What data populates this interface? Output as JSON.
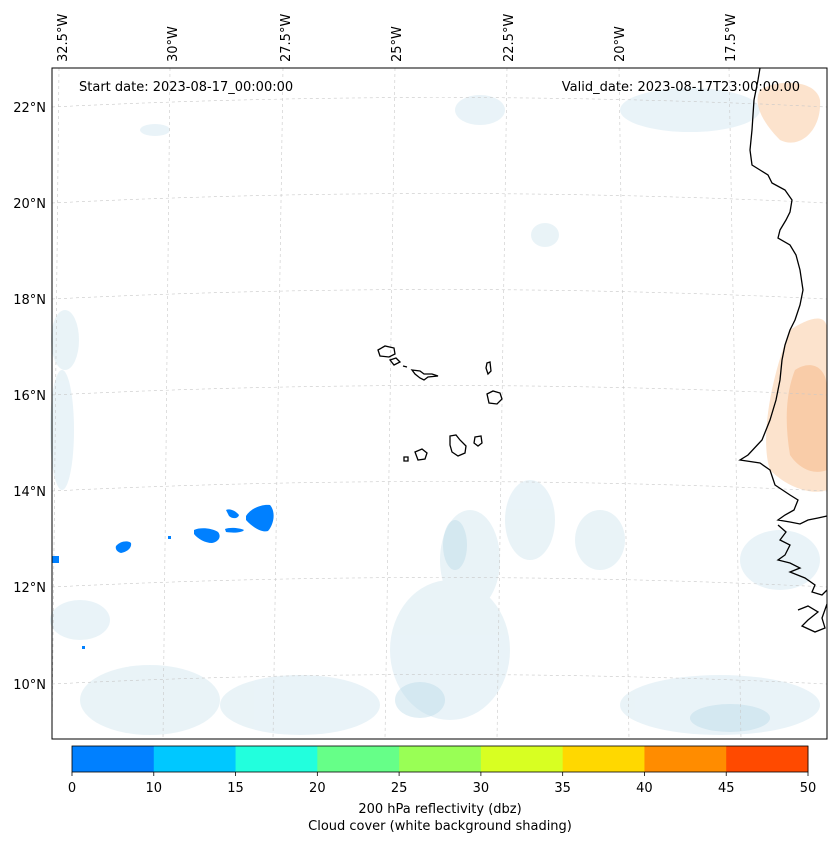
{
  "map": {
    "annotations": {
      "start": "Start date: 2023-08-17_00:00:00",
      "valid": "Valid_date: 2023-08-17T23:00:00.00"
    },
    "lon_labels": [
      "32.5°W",
      "30°W",
      "27.5°W",
      "25°W",
      "22.5°W",
      "20°W",
      "17.5°W"
    ],
    "lat_labels": [
      "22°N",
      "20°N",
      "18°N",
      "16°N",
      "14°N",
      "12°N",
      "10°N"
    ],
    "gridlines": true
  },
  "colorbar": {
    "ticks": [
      "0",
      "10",
      "15",
      "20",
      "25",
      "30",
      "35",
      "40",
      "45",
      "50"
    ],
    "colors": [
      "#0080ff",
      "#00c8ff",
      "#22ffdd",
      "#66ff88",
      "#99ff55",
      "#d8ff22",
      "#ffd800",
      "#ff8c00",
      "#ff4a00"
    ],
    "title_line1": "200 hPa reflectivity (dbz)",
    "title_line2": "Cloud cover (white background shading)"
  }
}
